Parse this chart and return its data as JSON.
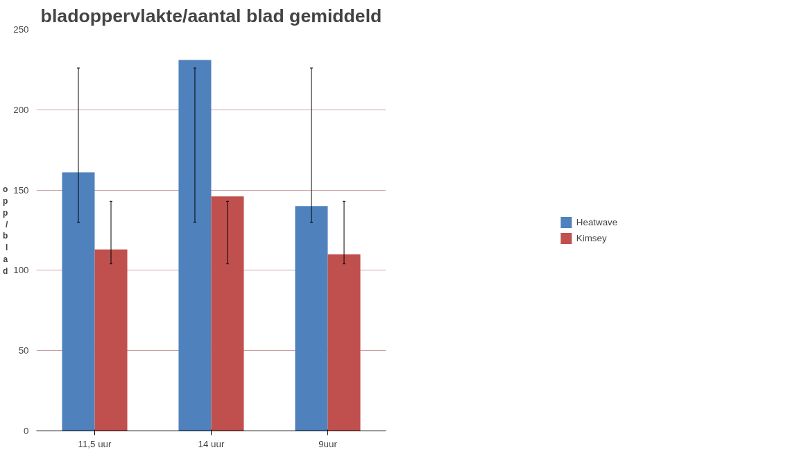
{
  "chart_data": {
    "type": "bar",
    "title": "bladoppervlakte/aantal blad gemiddeld",
    "ylabel": "opp/blad",
    "categories": [
      "11,5 uur",
      "14 uur",
      "9uur"
    ],
    "series": [
      {
        "name": "Heatwave",
        "color": "#4f81bd",
        "values": [
          161,
          231,
          140
        ],
        "errors": [
          [
            130,
            226
          ],
          [
            130,
            226
          ],
          [
            130,
            226
          ]
        ]
      },
      {
        "name": "Kimsey",
        "color": "#c0504d",
        "values": [
          113,
          146,
          110
        ],
        "errors": [
          [
            104,
            143
          ],
          [
            104,
            143
          ],
          [
            104,
            143
          ]
        ]
      }
    ],
    "ylim": [
      0,
      250
    ],
    "yticks": [
      0,
      50,
      100,
      150,
      200,
      250
    ],
    "grid": "y",
    "legend": "right"
  }
}
